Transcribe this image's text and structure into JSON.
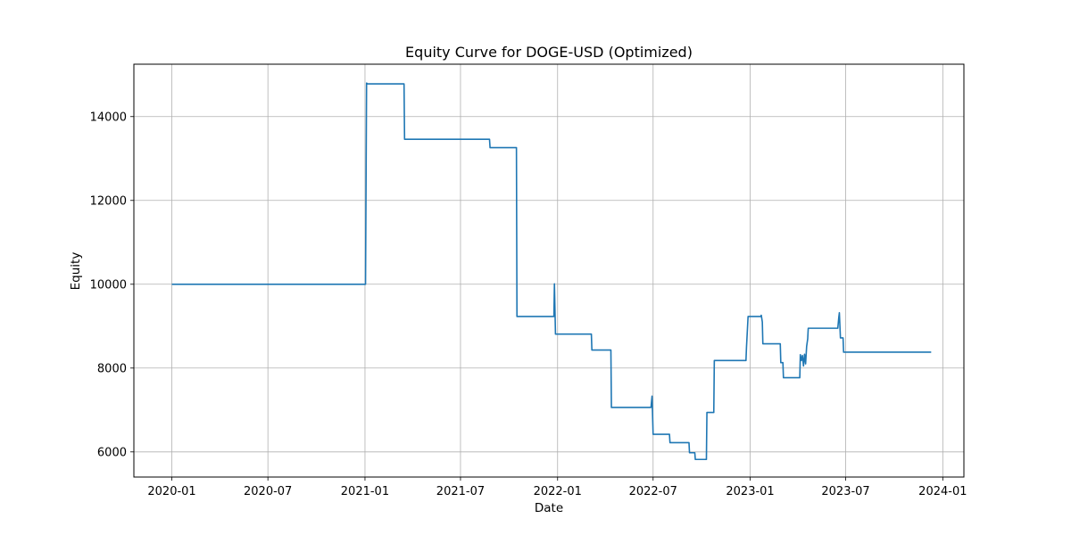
{
  "chart_data": {
    "type": "line",
    "title": "Equity Curve for DOGE-USD (Optimized)",
    "xlabel": "Date",
    "ylabel": "Equity",
    "grid": true,
    "xlim": [
      "2019-10-21",
      "2024-02-10"
    ],
    "ylim": [
      5400,
      15250
    ],
    "x_ticks": [
      "2020-01",
      "2020-07",
      "2021-01",
      "2021-07",
      "2022-01",
      "2022-07",
      "2023-01",
      "2023-07",
      "2024-01"
    ],
    "y_ticks": [
      6000,
      8000,
      10000,
      12000,
      14000
    ],
    "series": [
      {
        "color": "#1f77b4",
        "x": [
          "2020-01-01",
          "2021-01-02",
          "2021-01-04",
          "2021-01-06",
          "2021-03-16",
          "2021-03-17",
          "2021-08-25",
          "2021-08-26",
          "2021-10-15",
          "2021-10-16",
          "2021-12-25",
          "2021-12-26",
          "2021-12-28",
          "2022-01-01",
          "2022-03-06",
          "2022-03-07",
          "2022-04-12",
          "2022-04-13",
          "2022-06-27",
          "2022-06-29",
          "2022-07-01",
          "2022-07-02",
          "2022-08-01",
          "2022-08-02",
          "2022-09-07",
          "2022-09-08",
          "2022-09-18",
          "2022-09-19",
          "2022-10-10",
          "2022-10-11",
          "2022-10-24",
          "2022-10-25",
          "2022-12-24",
          "2022-12-25",
          "2022-12-28",
          "2023-01-21",
          "2023-01-22",
          "2023-01-24",
          "2023-01-25",
          "2023-02-27",
          "2023-02-28",
          "2023-03-04",
          "2023-03-05",
          "2023-04-05",
          "2023-04-06",
          "2023-04-08",
          "2023-04-10",
          "2023-04-12",
          "2023-04-14",
          "2023-04-16",
          "2023-04-18",
          "2023-04-20",
          "2023-04-21",
          "2023-06-16",
          "2023-06-18",
          "2023-06-19",
          "2023-06-21",
          "2023-06-26",
          "2023-06-27",
          "2023-12-10"
        ],
        "y": [
          10000,
          10000,
          14800,
          14780,
          14780,
          13460,
          13460,
          13260,
          13260,
          9230,
          9230,
          10010,
          8810,
          8810,
          8810,
          8430,
          8430,
          7060,
          7060,
          7330,
          6420,
          6420,
          6420,
          6220,
          6220,
          5980,
          5980,
          5820,
          5820,
          6940,
          6940,
          8180,
          8180,
          8500,
          9230,
          9230,
          9260,
          9100,
          8580,
          8580,
          8130,
          8130,
          7770,
          7770,
          8320,
          8180,
          8300,
          8050,
          8330,
          8100,
          8520,
          8700,
          8950,
          8950,
          9220,
          9320,
          8720,
          8720,
          8380,
          8380
        ]
      }
    ]
  }
}
